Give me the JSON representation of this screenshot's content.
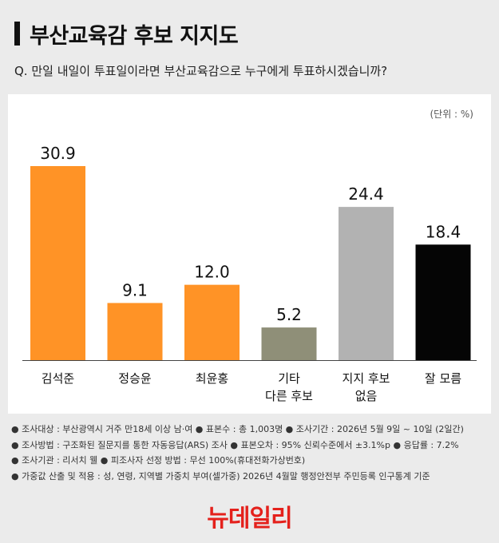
{
  "title": "부산교육감 후보 지지도",
  "question": "Q. 만일 내일이 투표일이라면 부산교육감으로 누구에게 투표하시겠습니까?",
  "unit": "(단위 : %)",
  "chart_data": {
    "type": "bar",
    "categories": [
      [
        "김석준"
      ],
      [
        "정승윤"
      ],
      [
        "최윤홍"
      ],
      [
        "기타",
        "다른 후보"
      ],
      [
        "지지 후보",
        "없음"
      ],
      [
        "잘 모름"
      ]
    ],
    "values": [
      30.9,
      9.1,
      12.0,
      5.2,
      24.4,
      18.4
    ],
    "value_labels": [
      "30.9",
      "9.1",
      "12.0",
      "5.2",
      "24.4",
      "18.4"
    ],
    "colors": [
      "#ff9326",
      "#ff9326",
      "#ff9326",
      "#8f8f78",
      "#b2b2b2",
      "#050505"
    ],
    "ylim": [
      0,
      30.9
    ],
    "grid": false
  },
  "notes": [
    "● 조사대상 : 부산광역시 거주 만18세 이상 남·여  ● 표본수 : 총 1,003명  ● 조사기간 : 2026년 5월 9일 ~ 10일 (2일간)",
    "● 조사방법 : 구조화된 질문지를 통한 자동응답(ARS) 조사  ● 표본오차 : 95% 신뢰수준에서 ±3.1%p  ● 응답률 : 7.2%",
    "● 조사기관 : 리서치 웰  ● 피조사자 선정 방법 : 무선 100%(휴대전화가상번호)",
    "● 가중값 산출 및 적용 : 성, 연령, 지역별 가중치 부여(셀가중) 2026년 4월말 행정안전부 주민등록 인구통계 기준"
  ],
  "logo_text": "뉴데일리"
}
